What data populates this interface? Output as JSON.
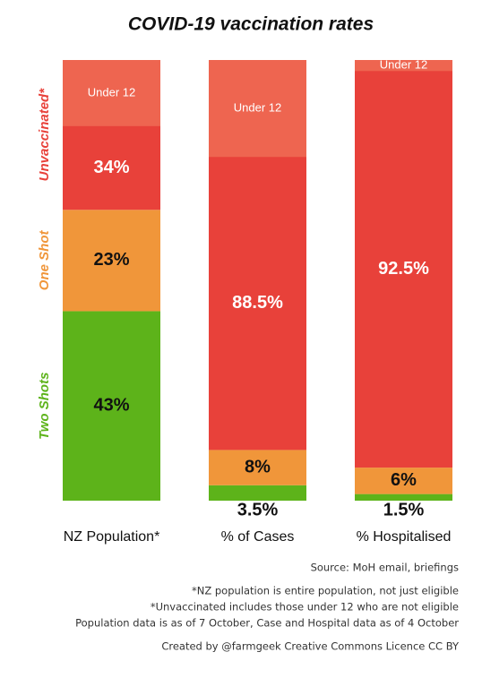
{
  "chart_data": {
    "type": "bar",
    "stacked": true,
    "title": "COVID-19 vaccination rates",
    "categories": [
      "NZ Population*",
      "% of Cases",
      "% Hospitalised"
    ],
    "series": [
      {
        "name": "Two Shots",
        "color": "#5db31a",
        "label_color": "#111111",
        "values": [
          43,
          3.5,
          1.5
        ],
        "value_labels": [
          "43%",
          "3.5%",
          "1.5%"
        ]
      },
      {
        "name": "One Shot",
        "color": "#f0963a",
        "label_color": "#111111",
        "values": [
          23,
          8,
          6
        ],
        "value_labels": [
          "23%",
          "8%",
          "6%"
        ]
      },
      {
        "name": "Unvaccinated*",
        "color": "#e8413a",
        "label_color": "#ffffff",
        "values": [
          34,
          88.5,
          92.5
        ],
        "value_labels": [
          "34%",
          "88.5%",
          "92.5%"
        ]
      }
    ],
    "under_12": {
      "label": "Under 12",
      "color": "#ee6550",
      "values": [
        15,
        22,
        2.5
      ]
    },
    "notes": [
      "Source: MoH email, briefings",
      "*NZ population is entire population, not just eligible",
      "*Unvaccinated includes those under 12 who are not eligible",
      "Population data is as of 7 October, Case and  Hospital data as of 4 October",
      "Created by  @farmgeek Creative Commons Licence CC BY"
    ]
  }
}
